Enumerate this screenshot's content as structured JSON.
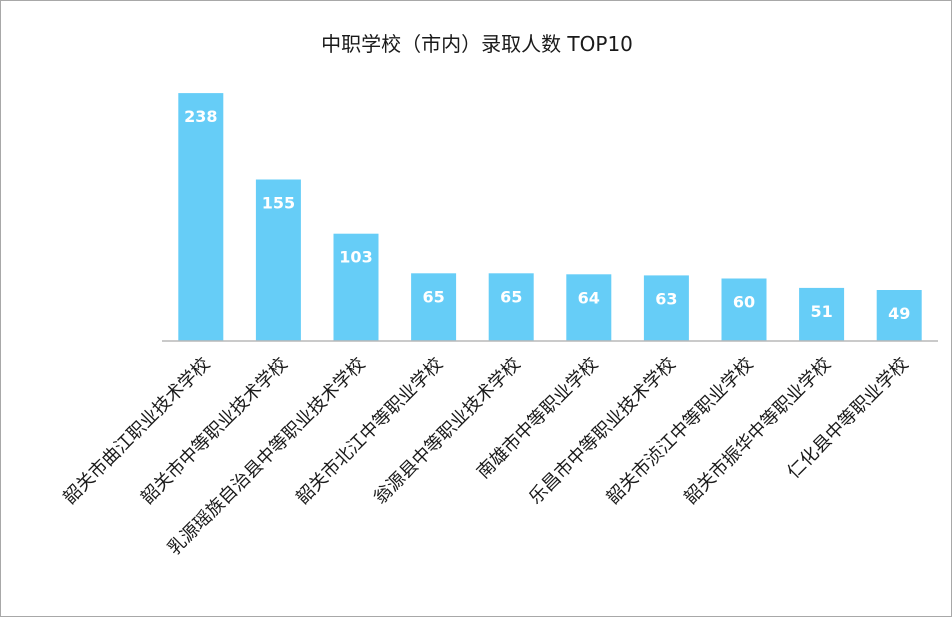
{
  "chart_data": {
    "type": "bar",
    "title": "中职学校（市内）录取人数 TOP10",
    "categories": [
      "韶关市曲江职业技术学校",
      "韶关市中等职业技术学校",
      "乳源瑶族自治县中等职业技术学校",
      "韶关市北江中等职业学校",
      "翁源县中等职业技术学校",
      "南雄市中等职业学校",
      "乐昌市中等职业技术学校",
      "韶关市浈江中等职业学校",
      "韶关市振华中等职业学校",
      "仁化县中等职业学校"
    ],
    "values": [
      238,
      155,
      103,
      65,
      65,
      64,
      63,
      60,
      51,
      49
    ],
    "ylim": [
      0,
      240
    ],
    "grid": false,
    "legend": "none",
    "bar_color": "#66cdf7",
    "label_color": "#ffffff"
  }
}
